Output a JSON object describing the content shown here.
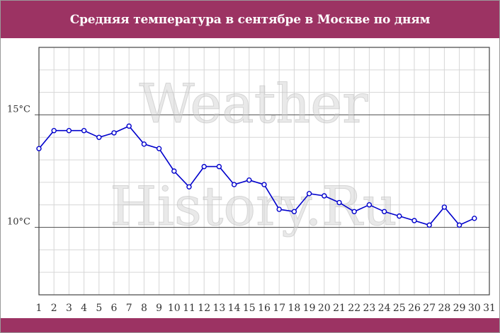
{
  "header": {
    "title": "Средняя температура в сентябре в Москве по дням"
  },
  "watermark": {
    "line1": "Weather",
    "line2": "History.Ru"
  },
  "colors": {
    "band": "#9c3363",
    "line": "#0000cc",
    "marker_fill": "#ffffff",
    "grid_minor": "#d6d6d6",
    "grid_major": "#555555"
  },
  "chart_data": {
    "type": "line",
    "title": "Средняя температура в сентябре в Москве по дням",
    "xlabel": "",
    "ylabel": "",
    "x": [
      1,
      2,
      3,
      4,
      5,
      6,
      7,
      8,
      9,
      10,
      11,
      12,
      13,
      14,
      15,
      16,
      17,
      18,
      19,
      20,
      21,
      22,
      23,
      24,
      25,
      26,
      27,
      28,
      29,
      30
    ],
    "x_ticks": [
      "1",
      "2",
      "3",
      "4",
      "5",
      "6",
      "7",
      "8",
      "9",
      "10",
      "11",
      "12",
      "13",
      "14",
      "15",
      "16",
      "17",
      "18",
      "19",
      "20",
      "21",
      "22",
      "23",
      "24",
      "25",
      "26",
      "27",
      "28",
      "29",
      "30",
      "31"
    ],
    "xlim": [
      1,
      31
    ],
    "ylim": [
      7,
      18
    ],
    "y_ticks": [
      {
        "value": 10,
        "label": "10°C"
      },
      {
        "value": 15,
        "label": "15°C"
      }
    ],
    "series": [
      {
        "values": [
          13.5,
          14.3,
          14.3,
          14.3,
          14.0,
          14.2,
          14.5,
          13.7,
          13.5,
          12.5,
          11.8,
          12.7,
          12.7,
          11.9,
          12.1,
          11.9,
          10.8,
          10.7,
          11.5,
          11.4,
          11.1,
          10.7,
          11.0,
          10.7,
          10.5,
          10.3,
          10.1,
          10.9,
          10.1,
          10.4
        ]
      }
    ],
    "grid": true,
    "legend": "none"
  }
}
